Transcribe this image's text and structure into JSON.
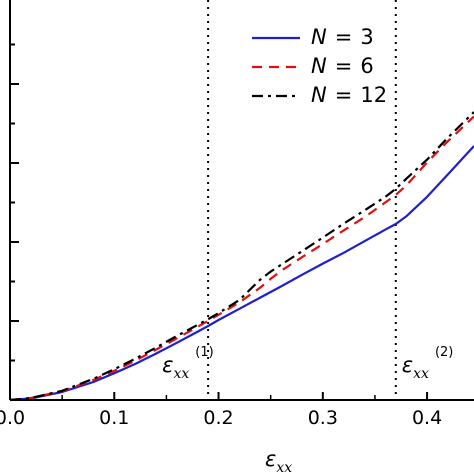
{
  "chart_data": {
    "type": "line",
    "xlabel_symbol": "ε",
    "xlabel_subscript": "xx",
    "xlim": [
      0,
      0.445
    ],
    "x_ticks": [
      "0.0",
      "0.1",
      "0.2",
      "0.3",
      "0.4"
    ],
    "x_tick_values": [
      0.0,
      0.1,
      0.2,
      0.3,
      0.4
    ],
    "ylabel": "",
    "y_ticks": [],
    "ylim": [
      0,
      1
    ],
    "grid": false,
    "legend_position": "top-right",
    "series": [
      {
        "name_var": "N",
        "name_value": "3",
        "color": "#1f1fd0",
        "dash": "solid",
        "x": [
          0.0,
          0.02,
          0.05,
          0.08,
          0.1,
          0.12,
          0.14,
          0.16,
          0.18,
          0.19,
          0.2,
          0.22,
          0.24,
          0.26,
          0.28,
          0.3,
          0.32,
          0.34,
          0.36,
          0.37,
          0.38,
          0.4,
          0.42,
          0.445
        ],
        "y": [
          0.0,
          0.004,
          0.02,
          0.045,
          0.067,
          0.09,
          0.116,
          0.143,
          0.171,
          0.185,
          0.2,
          0.228,
          0.256,
          0.284,
          0.313,
          0.341,
          0.368,
          0.397,
          0.426,
          0.44,
          0.459,
          0.508,
          0.564,
          0.635
        ]
      },
      {
        "name_var": "N",
        "name_value": "6",
        "color": "#e01010",
        "dash": "dashed",
        "x": [
          0.0,
          0.02,
          0.05,
          0.08,
          0.1,
          0.12,
          0.14,
          0.16,
          0.18,
          0.19,
          0.2,
          0.22,
          0.24,
          0.25,
          0.26,
          0.28,
          0.3,
          0.32,
          0.34,
          0.36,
          0.37,
          0.38,
          0.4,
          0.42,
          0.445
        ],
        "y": [
          0.0,
          0.005,
          0.022,
          0.05,
          0.073,
          0.098,
          0.126,
          0.154,
          0.183,
          0.198,
          0.213,
          0.244,
          0.281,
          0.303,
          0.323,
          0.357,
          0.39,
          0.424,
          0.457,
          0.494,
          0.513,
          0.536,
          0.594,
          0.647,
          0.709
        ]
      },
      {
        "name_var": "N",
        "name_value": "12",
        "color": "#000000",
        "dash": "dashdot",
        "x": [
          0.0,
          0.02,
          0.05,
          0.08,
          0.1,
          0.12,
          0.14,
          0.16,
          0.18,
          0.19,
          0.2,
          0.22,
          0.24,
          0.25,
          0.26,
          0.28,
          0.3,
          0.32,
          0.34,
          0.36,
          0.37,
          0.38,
          0.4,
          0.42,
          0.445
        ],
        "y": [
          0.0,
          0.005,
          0.023,
          0.053,
          0.077,
          0.103,
          0.131,
          0.16,
          0.188,
          0.202,
          0.217,
          0.25,
          0.301,
          0.321,
          0.338,
          0.372,
          0.406,
          0.441,
          0.474,
          0.508,
          0.528,
          0.553,
          0.601,
          0.656,
          0.72
        ]
      }
    ],
    "vlines": [
      {
        "x": 0.19,
        "label_symbol": "ε",
        "label_subscript": "xx",
        "label_superscript": "(1)"
      },
      {
        "x": 0.37,
        "label_symbol": "ε",
        "label_subscript": "xx",
        "label_superscript": "(2)"
      }
    ],
    "legend_equals": "="
  }
}
